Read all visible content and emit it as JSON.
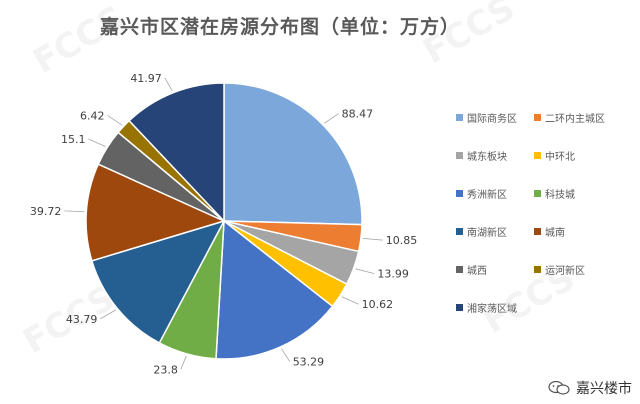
{
  "chart_data": {
    "type": "pie",
    "title": "嘉兴市区潜在房源分布图（单位：万方）",
    "slices": [
      {
        "name": "国际商务区",
        "value": 88.47,
        "color": "#7BA7DB"
      },
      {
        "name": "二环内主城区",
        "value": 10.85,
        "color": "#ED7D31"
      },
      {
        "name": "城东板块",
        "value": 13.99,
        "color": "#A5A5A5"
      },
      {
        "name": "中环北",
        "value": 10.62,
        "color": "#FFC000"
      },
      {
        "name": "秀洲新区",
        "value": 53.29,
        "color": "#4472C4"
      },
      {
        "name": "科技城",
        "value": 23.8,
        "color": "#70AD47"
      },
      {
        "name": "南湖新区",
        "value": 43.79,
        "color": "#255E91"
      },
      {
        "name": "城南",
        "value": 39.72,
        "color": "#9E480E"
      },
      {
        "name": "城西",
        "value": 15.1,
        "color": "#636363"
      },
      {
        "name": "运河新区",
        "value": 6.42,
        "color": "#997300"
      },
      {
        "name": "湘家荡区域",
        "value": 41.97,
        "color": "#264478"
      }
    ],
    "legend_position": "right"
  },
  "brand": {
    "name": "嘉兴楼市",
    "icon": "wechat-icon"
  }
}
